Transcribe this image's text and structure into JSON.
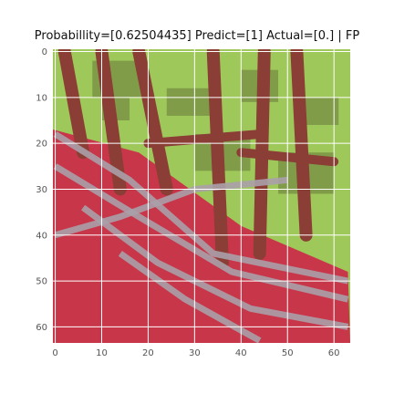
{
  "chart_data": {
    "type": "heatmap",
    "title": "Probabillity=[0.62504435] Predict=[1] Actual=[0.] | FP",
    "xlim": [
      0,
      63
    ],
    "ylim": [
      63,
      0
    ],
    "x_ticks": [
      "0",
      "10",
      "20",
      "30",
      "40",
      "50",
      "60"
    ],
    "y_ticks": [
      "0",
      "10",
      "20",
      "30",
      "40",
      "50",
      "60"
    ],
    "grid": true,
    "image_size": [
      64,
      64
    ],
    "colors": {
      "grid": "#ffffff",
      "tick_text": "#555555",
      "leaf_green": "#9ec85a",
      "dark_green": "#6c7f3e",
      "trunk_brown": "#8a3e35",
      "roof_red": "#c8364a",
      "gray_pipe": "#aaa0a8"
    }
  }
}
